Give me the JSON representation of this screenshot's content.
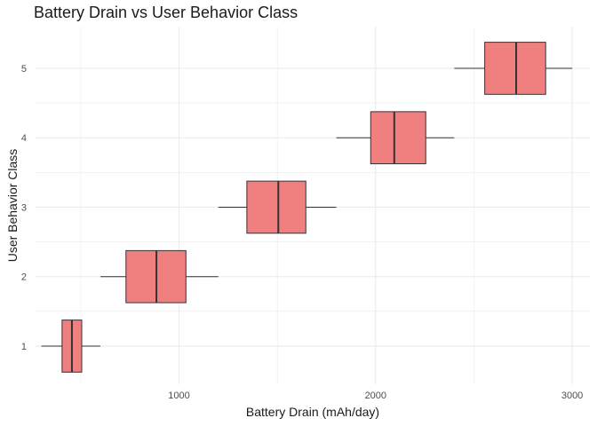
{
  "chart_data": {
    "type": "boxplot",
    "orientation": "horizontal",
    "title": "Battery Drain vs User Behavior Class",
    "xlabel": "Battery Drain (mAh/day)",
    "ylabel": "User Behavior Class",
    "xlim": [
      270,
      3090
    ],
    "ylim": [
      0.45,
      5.6
    ],
    "x_ticks": [
      1000,
      2000,
      3000
    ],
    "x_minor_ticks": [
      500,
      1500,
      2500
    ],
    "y_ticks": [
      "1",
      "2",
      "3",
      "4",
      "5"
    ],
    "grid": true,
    "legend": "none",
    "fill_color": "#f08080",
    "line_color": "#333333",
    "grid_color": "#ebebeb",
    "boxes": [
      {
        "category": "1",
        "min": 300,
        "q1": 405,
        "median": 455,
        "q3": 505,
        "max": 600
      },
      {
        "category": "2",
        "min": 600,
        "q1": 730,
        "median": 885,
        "q3": 1035,
        "max": 1200
      },
      {
        "category": "3",
        "min": 1200,
        "q1": 1345,
        "median": 1505,
        "q3": 1645,
        "max": 1800
      },
      {
        "category": "4",
        "min": 1800,
        "q1": 1975,
        "median": 2095,
        "q3": 2255,
        "max": 2400
      },
      {
        "category": "5",
        "min": 2400,
        "q1": 2555,
        "median": 2715,
        "q3": 2865,
        "max": 3000
      }
    ]
  }
}
